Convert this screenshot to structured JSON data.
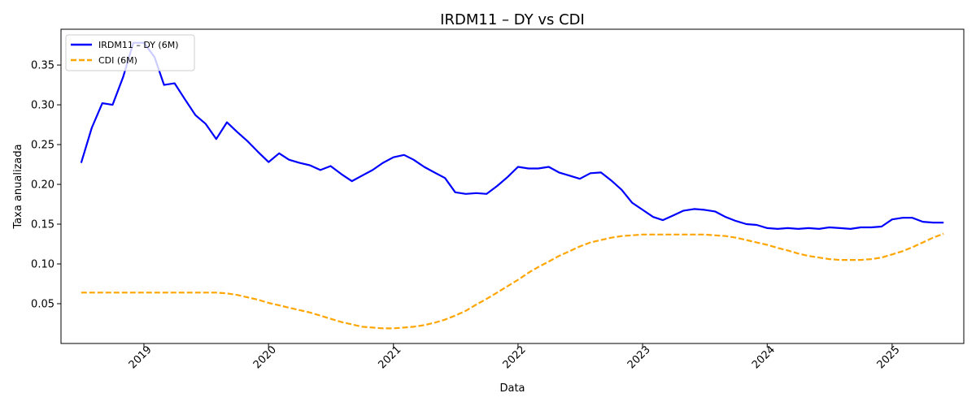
{
  "chart_data": {
    "type": "line",
    "title": "IRDM11 – DY vs CDI",
    "xlabel": "Data",
    "ylabel": "Taxa anualizada",
    "xlim": [
      "2018-05-03",
      "2025-07-30"
    ],
    "ylim": [
      0.0,
      0.395
    ],
    "x_ticks": [
      "2019",
      "2020",
      "2021",
      "2022",
      "2023",
      "2024",
      "2025"
    ],
    "y_ticks": [
      "0.05",
      "0.10",
      "0.15",
      "0.20",
      "0.25",
      "0.30",
      "0.35"
    ],
    "grid": false,
    "legend_position": "top-left",
    "series": [
      {
        "name": "IRDM11 – DY (6M)",
        "color": "#0000ff",
        "style": "solid",
        "x": [
          "2018-07-01",
          "2018-08-01",
          "2018-09-01",
          "2018-10-01",
          "2018-11-01",
          "2018-12-01",
          "2019-01-01",
          "2019-02-01",
          "2019-03-01",
          "2019-04-01",
          "2019-05-01",
          "2019-06-01",
          "2019-07-01",
          "2019-08-01",
          "2019-09-01",
          "2019-10-01",
          "2019-11-01",
          "2019-12-01",
          "2020-01-01",
          "2020-02-01",
          "2020-03-01",
          "2020-04-01",
          "2020-05-01",
          "2020-06-01",
          "2020-07-01",
          "2020-08-01",
          "2020-09-01",
          "2020-10-01",
          "2020-11-01",
          "2020-12-01",
          "2021-01-01",
          "2021-02-01",
          "2021-03-01",
          "2021-04-01",
          "2021-05-01",
          "2021-06-01",
          "2021-07-01",
          "2021-08-01",
          "2021-09-01",
          "2021-10-01",
          "2021-11-01",
          "2021-12-01",
          "2022-01-01",
          "2022-02-01",
          "2022-03-01",
          "2022-04-01",
          "2022-05-01",
          "2022-06-01",
          "2022-07-01",
          "2022-08-01",
          "2022-09-01",
          "2022-10-01",
          "2022-11-01",
          "2022-12-01",
          "2023-01-01",
          "2023-02-01",
          "2023-03-01",
          "2023-04-01",
          "2023-05-01",
          "2023-06-01",
          "2023-07-01",
          "2023-08-01",
          "2023-09-01",
          "2023-10-01",
          "2023-11-01",
          "2023-12-01",
          "2024-01-01",
          "2024-02-01",
          "2024-03-01",
          "2024-04-01",
          "2024-05-01",
          "2024-06-01",
          "2024-07-01",
          "2024-08-01",
          "2024-09-01",
          "2024-10-01",
          "2024-11-01",
          "2024-12-01",
          "2025-01-01",
          "2025-02-01",
          "2025-03-01",
          "2025-04-01",
          "2025-05-01",
          "2025-06-01"
        ],
        "values": [
          0.227,
          0.271,
          0.302,
          0.3,
          0.335,
          0.378,
          0.378,
          0.36,
          0.325,
          0.327,
          0.307,
          0.287,
          0.276,
          0.257,
          0.278,
          0.266,
          0.254,
          0.241,
          0.228,
          0.239,
          0.231,
          0.227,
          0.224,
          0.218,
          0.223,
          0.213,
          0.204,
          0.211,
          0.218,
          0.227,
          0.234,
          0.237,
          0.231,
          0.222,
          0.215,
          0.208,
          0.19,
          0.188,
          0.189,
          0.188,
          0.198,
          0.209,
          0.222,
          0.22,
          0.22,
          0.222,
          0.215,
          0.211,
          0.207,
          0.214,
          0.215,
          0.205,
          0.193,
          0.177,
          0.168,
          0.159,
          0.155,
          0.161,
          0.167,
          0.169,
          0.168,
          0.166,
          0.159,
          0.154,
          0.15,
          0.149,
          0.145,
          0.144,
          0.145,
          0.144,
          0.145,
          0.144,
          0.146,
          0.145,
          0.144,
          0.146,
          0.146,
          0.147,
          0.156,
          0.158,
          0.158,
          0.153,
          0.152,
          0.152
        ]
      },
      {
        "name": "CDI (6M)",
        "color": "#ffa500",
        "style": "dashed",
        "x": [
          "2018-07-01",
          "2018-10-01",
          "2019-01-01",
          "2019-04-01",
          "2019-07-01",
          "2019-08-01",
          "2019-09-01",
          "2019-10-01",
          "2019-11-01",
          "2019-12-01",
          "2020-01-01",
          "2020-02-01",
          "2020-03-01",
          "2020-04-01",
          "2020-05-01",
          "2020-06-01",
          "2020-07-01",
          "2020-08-01",
          "2020-09-01",
          "2020-10-01",
          "2020-11-01",
          "2020-12-01",
          "2021-01-01",
          "2021-02-01",
          "2021-03-01",
          "2021-04-01",
          "2021-05-01",
          "2021-06-01",
          "2021-07-01",
          "2021-08-01",
          "2021-09-01",
          "2021-10-01",
          "2021-11-01",
          "2021-12-01",
          "2022-01-01",
          "2022-02-01",
          "2022-03-01",
          "2022-04-01",
          "2022-05-01",
          "2022-06-01",
          "2022-07-01",
          "2022-08-01",
          "2022-09-01",
          "2022-10-01",
          "2022-11-01",
          "2022-12-01",
          "2023-01-01",
          "2023-03-01",
          "2023-05-01",
          "2023-07-01",
          "2023-08-01",
          "2023-09-01",
          "2023-10-01",
          "2023-11-01",
          "2023-12-01",
          "2024-01-01",
          "2024-02-01",
          "2024-03-01",
          "2024-04-01",
          "2024-05-01",
          "2024-06-01",
          "2024-07-01",
          "2024-08-01",
          "2024-09-01",
          "2024-10-01",
          "2024-11-01",
          "2024-12-01",
          "2025-01-01",
          "2025-02-01",
          "2025-03-01",
          "2025-04-01",
          "2025-05-01",
          "2025-06-01"
        ],
        "values": [
          0.064,
          0.064,
          0.064,
          0.064,
          0.064,
          0.064,
          0.063,
          0.061,
          0.058,
          0.055,
          0.051,
          0.048,
          0.045,
          0.042,
          0.039,
          0.035,
          0.031,
          0.027,
          0.024,
          0.021,
          0.02,
          0.019,
          0.019,
          0.02,
          0.021,
          0.023,
          0.026,
          0.03,
          0.035,
          0.041,
          0.049,
          0.056,
          0.064,
          0.072,
          0.08,
          0.089,
          0.096,
          0.103,
          0.11,
          0.116,
          0.122,
          0.127,
          0.13,
          0.133,
          0.135,
          0.136,
          0.137,
          0.137,
          0.137,
          0.137,
          0.136,
          0.135,
          0.133,
          0.13,
          0.127,
          0.124,
          0.12,
          0.117,
          0.113,
          0.11,
          0.108,
          0.106,
          0.105,
          0.105,
          0.105,
          0.106,
          0.108,
          0.112,
          0.116,
          0.121,
          0.127,
          0.133,
          0.138
        ]
      }
    ]
  }
}
